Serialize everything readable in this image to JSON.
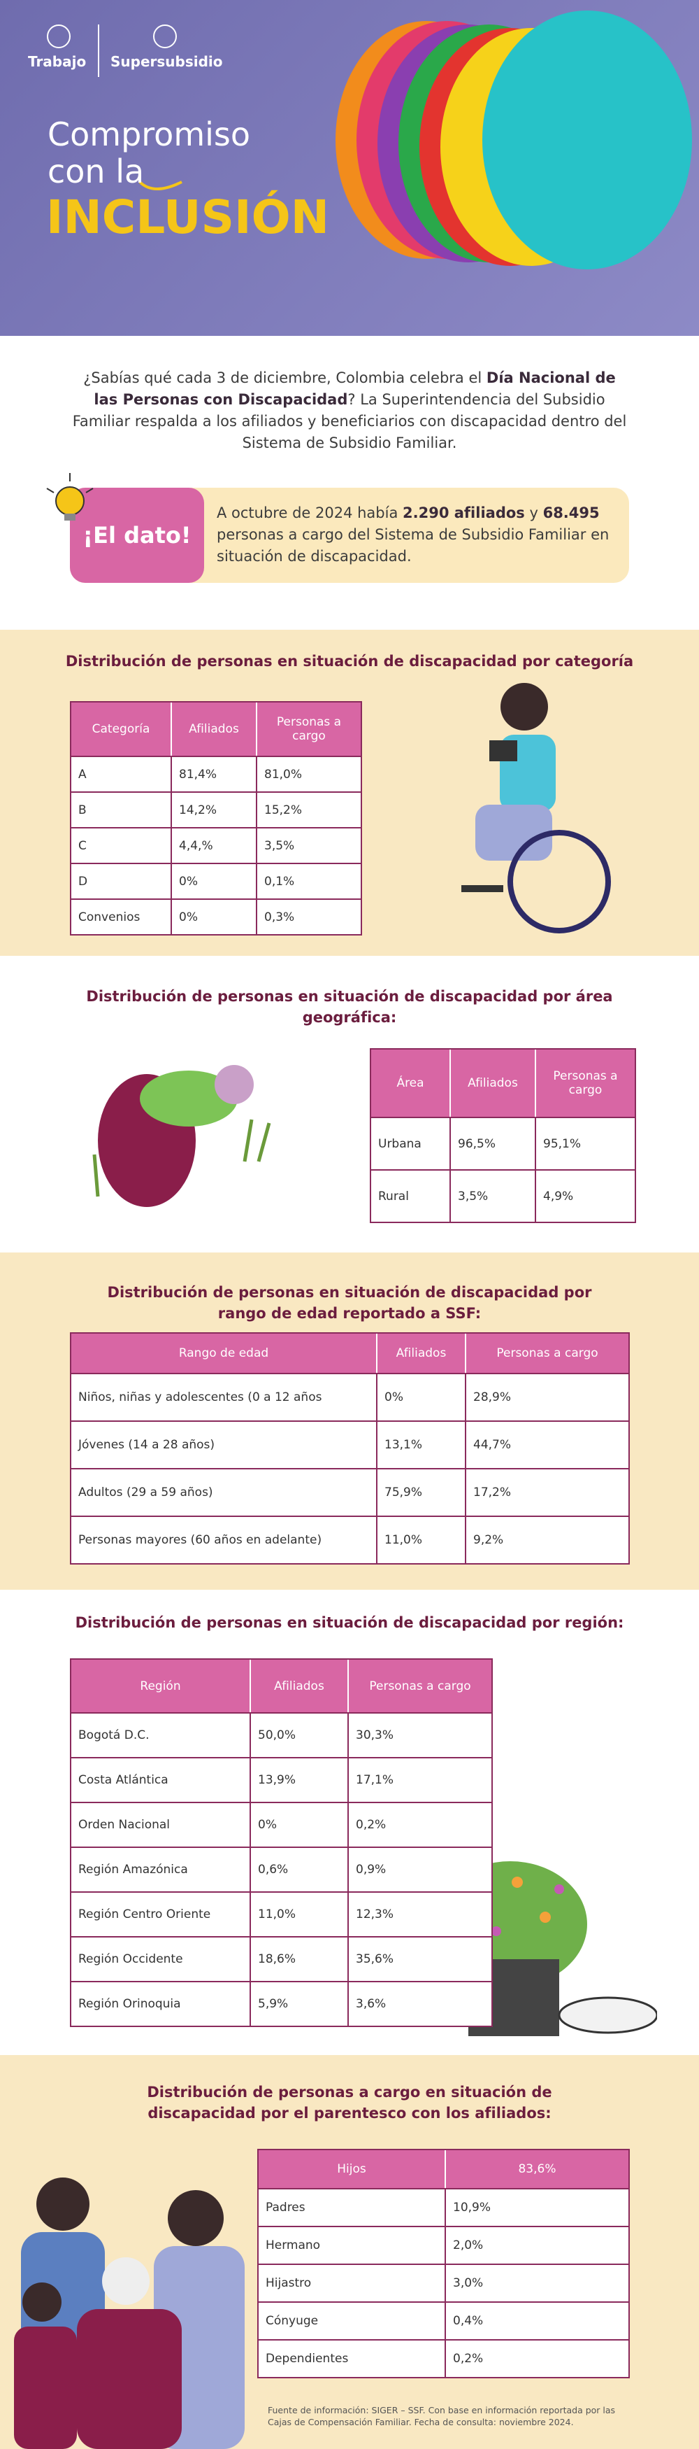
{
  "header": {
    "logos": [
      "Trabajo",
      "Supersubsidio"
    ],
    "title_line1": "Compromiso",
    "title_line2": "con la",
    "title_highlight": "INCLUSIÓN"
  },
  "intro": [
    "¿Sabías qué cada 3 de diciembre, Colombia celebra el ",
    "Día Nacional de las Personas con Discapacidad",
    "? La Superintendencia del Subsidio Familiar respalda a los afiliados y beneficiarios con discapacidad dentro del Sistema de Subsidio Familiar."
  ],
  "dato": {
    "label": "¡El dato!",
    "text": [
      "A octubre de 2024 había ",
      "2.290 afiliados",
      " y ",
      "68.495",
      " personas a cargo del Sistema de Subsidio Familiar en situación de discapacidad."
    ]
  },
  "sections": [
    {
      "title": "Distribución de personas en situación de discapacidad por categoría",
      "table": {
        "header": [
          "Categoría",
          "Afiliados",
          "Personas a cargo"
        ],
        "rows": [
          [
            "A",
            "81,4%",
            "81,0%"
          ],
          [
            "B",
            "14,2%",
            "15,2%"
          ],
          [
            "C",
            "4,4,%",
            "3,5%"
          ],
          [
            "D",
            "0%",
            "0,1%"
          ],
          [
            "Convenios",
            "0%",
            "0,3%"
          ]
        ]
      }
    },
    {
      "title": "Distribución de personas en situación de discapacidad por área geográfica:",
      "table": {
        "header": [
          "Área",
          "Afiliados",
          "Personas a cargo"
        ],
        "rows": [
          [
            "Urbana",
            "96,5%",
            "95,1%"
          ],
          [
            "Rural",
            "3,5%",
            "4,9%"
          ]
        ]
      }
    },
    {
      "title": "Distribución de personas en situación de discapacidad por rango de edad reportado a SSF:",
      "table": {
        "header": [
          "Rango de edad",
          "Afiliados",
          "Personas a cargo"
        ],
        "rows": [
          [
            "Niños, niñas y adolescentes (0 a 12 años",
            "0%",
            "28,9%"
          ],
          [
            "Jóvenes (14 a 28 años)",
            "13,1%",
            "44,7%"
          ],
          [
            "Adultos (29 a 59 años)",
            "75,9%",
            "17,2%"
          ],
          [
            "Personas mayores (60 años en adelante)",
            "11,0%",
            "9,2%"
          ]
        ]
      }
    },
    {
      "title": "Distribución de personas en situación de discapacidad por región:",
      "table": {
        "header": [
          "Región",
          "Afiliados",
          "Personas a cargo"
        ],
        "rows": [
          [
            "Bogotá D.C.",
            "50,0%",
            "30,3%"
          ],
          [
            "Costa Atlántica",
            "13,9%",
            "17,1%"
          ],
          [
            "Orden Nacional",
            "0%",
            "0,2%"
          ],
          [
            "Región Amazónica",
            "0,6%",
            "0,9%"
          ],
          [
            "Región Centro Oriente",
            "11,0%",
            "12,3%"
          ],
          [
            "Región Occidente",
            "18,6%",
            "35,6%"
          ],
          [
            "Región Orinoquia",
            "5,9%",
            "3,6%"
          ]
        ]
      }
    },
    {
      "title": "Distribución de personas a cargo en situación de discapacidad por el parentesco con los afiliados:",
      "table": {
        "header": [
          "Hijos",
          "83,6%"
        ],
        "rows": [
          [
            "Padres",
            "10,9%"
          ],
          [
            "Hermano",
            "2,0%"
          ],
          [
            "Hijastro",
            "3,0%"
          ],
          [
            "Cónyuge",
            "0,4%"
          ],
          [
            "Dependientes",
            "0,2%"
          ]
        ]
      }
    }
  ],
  "footnote": "Fuente de información: SIGER – SSF. Con base en información reportada por las Cajas de Compensación Familiar. Fecha de consulta: noviembre 2024."
}
